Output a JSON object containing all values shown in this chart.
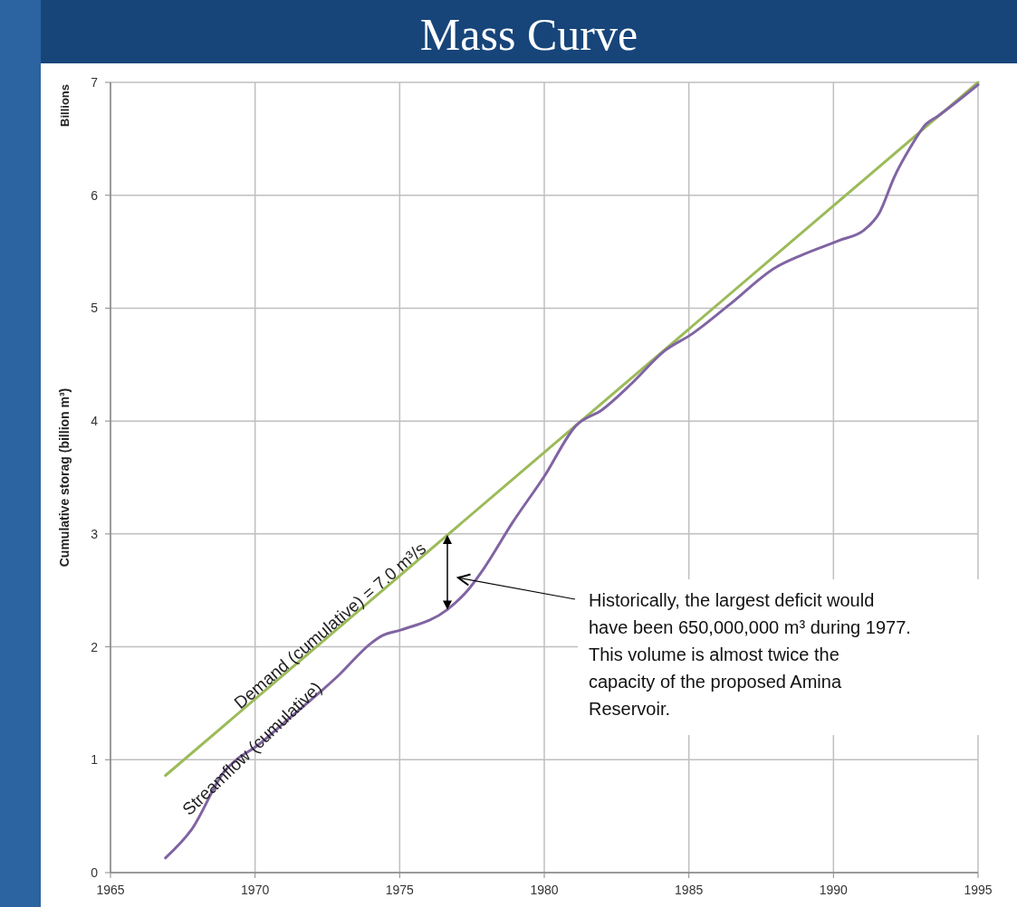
{
  "chart_data": {
    "type": "line",
    "title": "Mass Curve",
    "ylabel": "Cumulative storag (billion m³)",
    "xlim": [
      1965,
      1995
    ],
    "xticks": [
      1965,
      1970,
      1975,
      1980,
      1985,
      1990,
      1995
    ],
    "ylim": [
      0,
      7
    ],
    "yticks": [
      0,
      1,
      2,
      3,
      4,
      5,
      6,
      7
    ],
    "grid": true,
    "legend": false,
    "marker": "none",
    "line_style": "solid",
    "series": [
      {
        "name": "Demand (cumulative) = 7.0 m³/s",
        "color": "#9bbb59",
        "x": [
          1966.9,
          1995
        ],
        "values": [
          0.86,
          7.0
        ]
      },
      {
        "name": "Streamflow (cumulative)",
        "color": "#8064a2",
        "x": [
          1966.9,
          1967.8,
          1968.95,
          1969.4,
          1970,
          1971.15,
          1972.9,
          1974,
          1974.4,
          1975.05,
          1976.65,
          1977.35,
          1977.9,
          1978.9,
          1980,
          1981.1,
          1982,
          1983.05,
          1984.15,
          1985.1,
          1986.4,
          1988,
          1988.9,
          1990.2,
          1991.05,
          1991.6,
          1992.1,
          1992.65,
          1993.2,
          1993.6,
          1995
        ],
        "values": [
          0.13,
          0.38,
          0.9,
          1.01,
          1.11,
          1.36,
          1.75,
          2.03,
          2.1,
          2.15,
          2.33,
          2.5,
          2.69,
          3.1,
          3.51,
          3.96,
          4.1,
          4.34,
          4.62,
          4.77,
          5.03,
          5.36,
          5.47,
          5.6,
          5.69,
          5.85,
          6.16,
          6.42,
          6.63,
          6.7,
          6.98
        ]
      }
    ],
    "annotations": [
      "Billions",
      "Historically, the largest deficit would have been 650,000,000 m³ during 1977. This volume is almost twice the capacity of the proposed Amina Reservoir."
    ]
  }
}
